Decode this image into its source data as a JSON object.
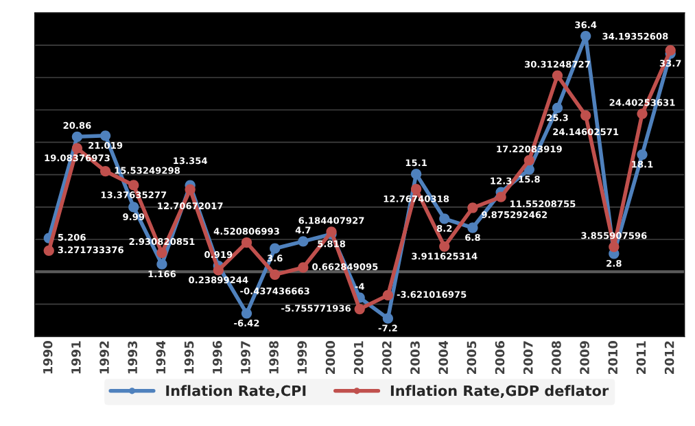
{
  "chart_data": {
    "type": "line",
    "categories": [
      "1990",
      "1991",
      "1992",
      "1993",
      "1994",
      "1995",
      "1996",
      "1997",
      "1998",
      "1999",
      "2000",
      "2001",
      "2002",
      "2003",
      "2004",
      "2005",
      "2006",
      "2007",
      "2008",
      "2009",
      "2010",
      "2011",
      "2012"
    ],
    "series": [
      {
        "name": "Inflation Rate,CPI",
        "color": "#4f81bd",
        "values": [
          5.206,
          20.86,
          21.019,
          9.99,
          1.166,
          13.354,
          0.919,
          -6.42,
          3.6,
          4.7,
          5.818,
          -4,
          -7.2,
          15.1,
          8.2,
          6.8,
          12.3,
          15.8,
          25.3,
          36.4,
          2.8,
          18.1,
          33.7
        ]
      },
      {
        "name": "Inflation Rate,GDP deflator",
        "color": "#c0504d",
        "values": [
          3.271733376,
          19.08376973,
          15.53249298,
          13.37635277,
          2.930820851,
          12.70672017,
          0.23899244,
          4.520806993,
          -0.437436663,
          0.662849095,
          6.184407927,
          -5.755771936,
          -3.621016975,
          12.76740318,
          3.911625314,
          9.875292462,
          11.55208755,
          17.22083919,
          30.31248727,
          24.14602571,
          3.855907596,
          24.40253631,
          34.19352608
        ]
      }
    ],
    "ylim": [
      -10,
      40
    ],
    "yticks": [
      {
        "value": -10,
        "label": null
      },
      {
        "value": -5,
        "label": null
      },
      {
        "value": 0,
        "label": null
      },
      {
        "value": 5,
        "label": null
      },
      {
        "value": 10,
        "label": null
      },
      {
        "value": 15,
        "label": null
      },
      {
        "value": 20,
        "label": null
      },
      {
        "value": 25,
        "label": null
      },
      {
        "value": 30,
        "label": null
      },
      {
        "value": 35,
        "label": null
      },
      {
        "value": 40,
        "label": null
      }
    ],
    "tick_labels": "x",
    "grid": "y",
    "legend": "bottom",
    "marker": "circle",
    "line_style": "solid",
    "data_labels": true
  }
}
